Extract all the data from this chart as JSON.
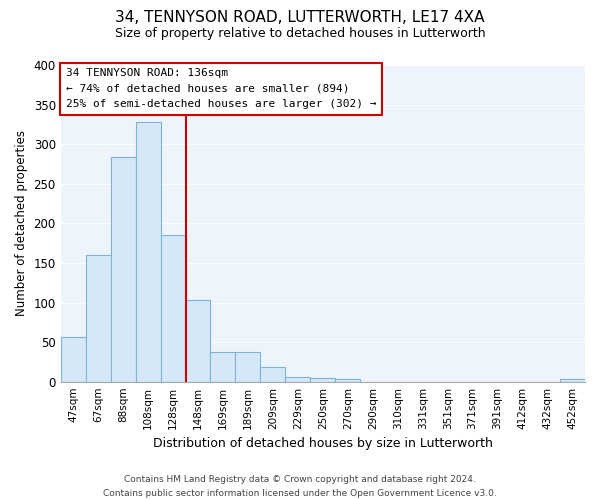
{
  "title": "34, TENNYSON ROAD, LUTTERWORTH, LE17 4XA",
  "subtitle": "Size of property relative to detached houses in Lutterworth",
  "xlabel": "Distribution of detached houses by size in Lutterworth",
  "ylabel": "Number of detached properties",
  "bar_labels": [
    "47sqm",
    "67sqm",
    "88sqm",
    "108sqm",
    "128sqm",
    "148sqm",
    "169sqm",
    "189sqm",
    "209sqm",
    "229sqm",
    "250sqm",
    "270sqm",
    "290sqm",
    "310sqm",
    "331sqm",
    "351sqm",
    "371sqm",
    "391sqm",
    "412sqm",
    "432sqm",
    "452sqm"
  ],
  "bar_values": [
    57,
    160,
    284,
    328,
    185,
    103,
    37,
    37,
    18,
    6,
    5,
    4,
    0,
    0,
    0,
    0,
    0,
    0,
    0,
    0,
    3
  ],
  "bar_fill_color": "#d6e8f7",
  "bar_edge_color": "#7ab4d8",
  "vline_color": "#cc0000",
  "vline_x": 4.5,
  "ylim": [
    0,
    400
  ],
  "yticks": [
    0,
    50,
    100,
    150,
    200,
    250,
    300,
    350,
    400
  ],
  "annotation_title": "34 TENNYSON ROAD: 136sqm",
  "annotation_line1": "← 74% of detached houses are smaller (894)",
  "annotation_line2": "25% of semi-detached houses are larger (302) →",
  "footer_line1": "Contains HM Land Registry data © Crown copyright and database right 2024.",
  "footer_line2": "Contains public sector information licensed under the Open Government Licence v3.0.",
  "background_color": "#ffffff",
  "plot_bg_color": "#eef4fb",
  "grid_color": "#ffffff"
}
